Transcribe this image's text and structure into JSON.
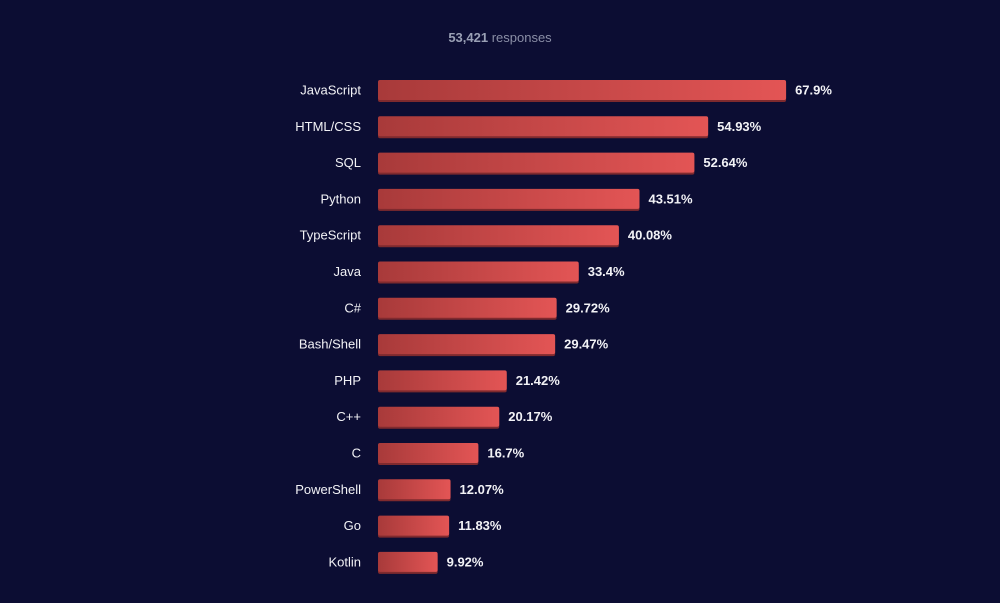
{
  "header": {
    "count": "53,421",
    "suffix": "responses"
  },
  "colors": {
    "background": "#0c0d33",
    "bar_dark": "#a83a3a",
    "bar_light": "#e35555",
    "bar_shadow": "#7f2a2e",
    "text": "#f2f2f6"
  },
  "chart_data": {
    "type": "bar",
    "orientation": "horizontal",
    "categories": [
      "JavaScript",
      "HTML/CSS",
      "SQL",
      "Python",
      "TypeScript",
      "Java",
      "C#",
      "Bash/Shell",
      "PHP",
      "C++",
      "C",
      "PowerShell",
      "Go",
      "Kotlin"
    ],
    "values": [
      67.9,
      54.93,
      52.64,
      43.51,
      40.08,
      33.4,
      29.72,
      29.47,
      21.42,
      20.17,
      16.7,
      12.07,
      11.83,
      9.92
    ],
    "value_labels": [
      "67.9%",
      "54.93%",
      "52.64%",
      "43.51%",
      "40.08%",
      "33.4%",
      "29.72%",
      "29.47%",
      "21.42%",
      "20.17%",
      "16.7%",
      "12.07%",
      "11.83%",
      "9.92%"
    ],
    "unit": "%",
    "grid": false,
    "legend": "none"
  }
}
